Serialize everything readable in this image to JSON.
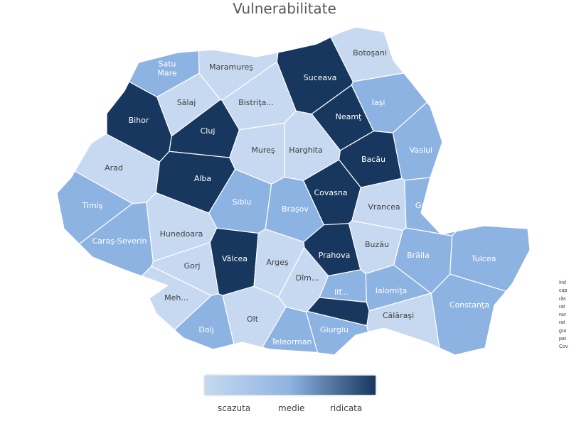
{
  "title": "Vulnerabilitate",
  "colors": {
    "scazuta": "#c6d9f0",
    "medie": "#8db3e2",
    "ridicata": "#17375e",
    "border": "#ffffff"
  },
  "legend": {
    "low": "scazuta",
    "mid": "medie",
    "high": "ridicata"
  },
  "side_note_fragments": [
    "Ind",
    "cap",
    "răs",
    "rat",
    "nur",
    "rat",
    "gra",
    "pat",
    "Cov"
  ],
  "counties": [
    {
      "name": "Satu\nMare",
      "level": "medie"
    },
    {
      "name": "Maramureş",
      "level": "scazuta"
    },
    {
      "name": "Botoşani",
      "level": "scazuta"
    },
    {
      "name": "Suceava",
      "level": "ridicata"
    },
    {
      "name": "Sălaj",
      "level": "scazuta"
    },
    {
      "name": "Bistriţa...",
      "level": "scazuta"
    },
    {
      "name": "Iaşi",
      "level": "medie"
    },
    {
      "name": "Bihor",
      "level": "ridicata"
    },
    {
      "name": "Cluj",
      "level": "ridicata"
    },
    {
      "name": "Neamţ",
      "level": "ridicata"
    },
    {
      "name": "Mureş",
      "level": "scazuta"
    },
    {
      "name": "Harghita",
      "level": "scazuta"
    },
    {
      "name": "Bacău",
      "level": "ridicata"
    },
    {
      "name": "Vaslui",
      "level": "medie"
    },
    {
      "name": "Arad",
      "level": "scazuta"
    },
    {
      "name": "Alba",
      "level": "ridicata"
    },
    {
      "name": "Sibiu",
      "level": "medie"
    },
    {
      "name": "Covasna",
      "level": "ridicata"
    },
    {
      "name": "Braşov",
      "level": "medie"
    },
    {
      "name": "Vrancea",
      "level": "scazuta"
    },
    {
      "name": "Galaţi",
      "level": "medie"
    },
    {
      "name": "Timiş",
      "level": "medie"
    },
    {
      "name": "Caraş-Severin",
      "level": "medie"
    },
    {
      "name": "Hunedoara",
      "level": "scazuta"
    },
    {
      "name": "Vâlcea",
      "level": "ridicata"
    },
    {
      "name": "Argeş",
      "level": "scazuta"
    },
    {
      "name": "Dîm...",
      "level": "scazuta"
    },
    {
      "name": "Prahova",
      "level": "ridicata"
    },
    {
      "name": "Buzău",
      "level": "scazuta"
    },
    {
      "name": "Brăila",
      "level": "medie"
    },
    {
      "name": "Tulcea",
      "level": "medie"
    },
    {
      "name": "Gorj",
      "level": "scazuta"
    },
    {
      "name": "Meh...",
      "level": "scazuta"
    },
    {
      "name": "Olt",
      "level": "scazuta"
    },
    {
      "name": "Dolj",
      "level": "medie"
    },
    {
      "name": "Teleorman",
      "level": "medie"
    },
    {
      "name": "Giurgiu",
      "level": "medie"
    },
    {
      "name": "Ilf...",
      "level": "medie"
    },
    {
      "name": "",
      "level": "ridicata"
    },
    {
      "name": "Ialomiţa",
      "level": "medie"
    },
    {
      "name": "Călăraşi",
      "level": "scazuta"
    },
    {
      "name": "Constanţa",
      "level": "medie"
    }
  ]
}
